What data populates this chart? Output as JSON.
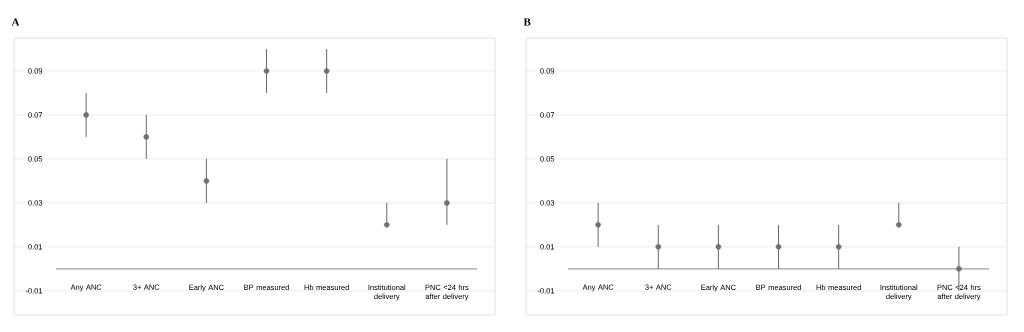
{
  "chart_data": [
    {
      "type": "scatter",
      "title": "A",
      "categories": [
        "Any ANC",
        "3+ ANC",
        "Early ANC",
        "BP measured",
        "Hb measured",
        "Institutional delivery",
        "PNC <24 hrs after delivery"
      ],
      "values": [
        0.07,
        0.06,
        0.04,
        0.09,
        0.09,
        0.02,
        0.03
      ],
      "errors": [
        [
          0.06,
          0.08
        ],
        [
          0.05,
          0.07
        ],
        [
          0.03,
          0.05
        ],
        [
          0.08,
          0.1
        ],
        [
          0.08,
          0.1
        ],
        [
          0.02,
          0.03
        ],
        [
          0.02,
          0.05
        ]
      ],
      "color": "#707070",
      "ylim": [
        -0.021,
        0.105
      ],
      "yticks": [
        -0.01,
        0.01,
        0.03,
        0.05,
        0.07,
        0.09
      ],
      "grid": "y"
    },
    {
      "type": "scatter",
      "title": "B",
      "categories": [
        "Any ANC",
        "3+ ANC",
        "Early ANC",
        "BP measured",
        "Hb measured",
        "Institutional delivery",
        "PNC <24 hrs after delivery"
      ],
      "values": [
        0.02,
        0.01,
        0.01,
        0.01,
        0.01,
        0.02,
        0.0
      ],
      "errors": [
        [
          0.01,
          0.03
        ],
        [
          0.0,
          0.02
        ],
        [
          0.0,
          0.02
        ],
        [
          0.0,
          0.02
        ],
        [
          0.0,
          0.02
        ],
        [
          0.02,
          0.03
        ],
        [
          -0.01,
          0.01
        ]
      ],
      "color": "#707070",
      "ylim": [
        -0.021,
        0.105
      ],
      "yticks": [
        -0.01,
        0.01,
        0.03,
        0.05,
        0.07,
        0.09
      ],
      "grid": "y"
    }
  ]
}
